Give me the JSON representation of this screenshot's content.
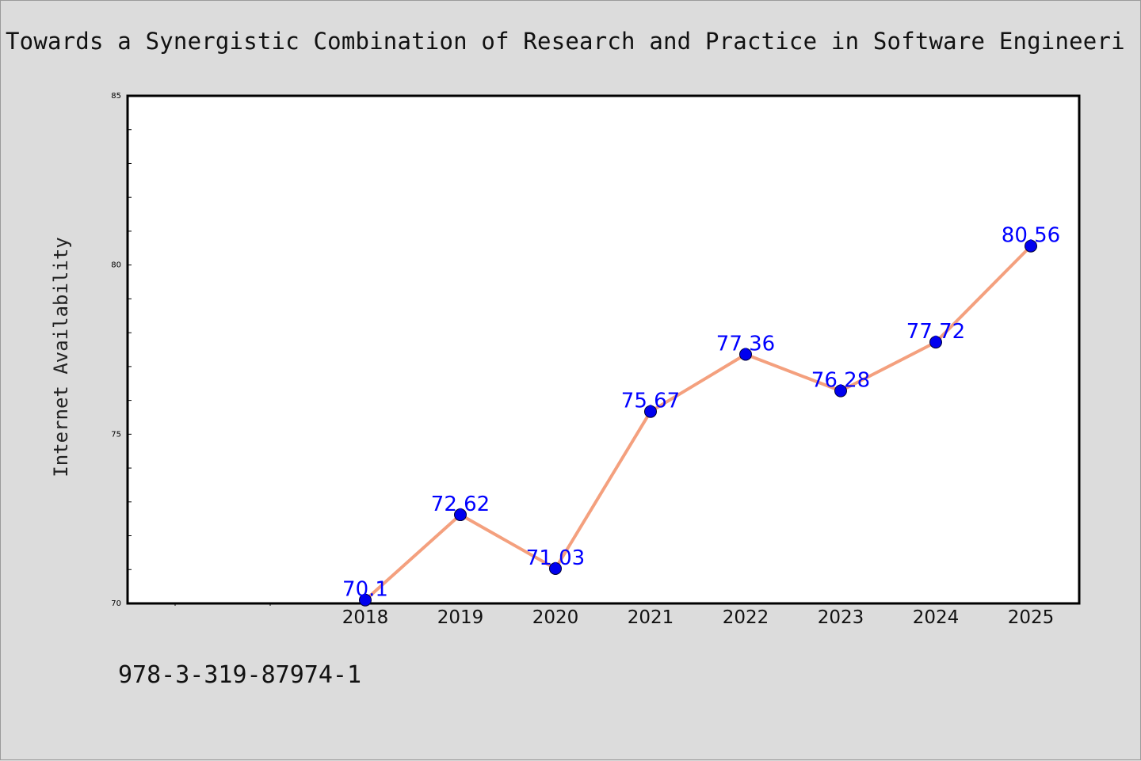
{
  "chart_data": {
    "type": "line",
    "title": "Towards a Synergistic Combination of Research and Practice in Software Engineeri",
    "xlabel": "",
    "ylabel": "Internet Availability",
    "x": [
      "2018",
      "2019",
      "2020",
      "2021",
      "2022",
      "2023",
      "2024",
      "2025"
    ],
    "series": [
      {
        "values": [
          70.1,
          72.62,
          71.03,
          75.67,
          77.36,
          76.28,
          77.72,
          80.56
        ]
      }
    ],
    "data_labels": [
      "70.1",
      "72.62",
      "71.03",
      "75.67",
      "77.36",
      "76.28",
      "77.72",
      "80.56"
    ],
    "ylim": [
      70,
      85
    ],
    "y_ticks": [
      "70",
      "75",
      "80",
      "85"
    ],
    "grid": false,
    "line_color": "#f4a07e",
    "marker_color": "#0000ee",
    "label_color": "#0000ff",
    "background": "#dcdcdc",
    "plot_background": "#ffffff"
  },
  "footer": {
    "isbn": "978-3-319-87974-1"
  }
}
